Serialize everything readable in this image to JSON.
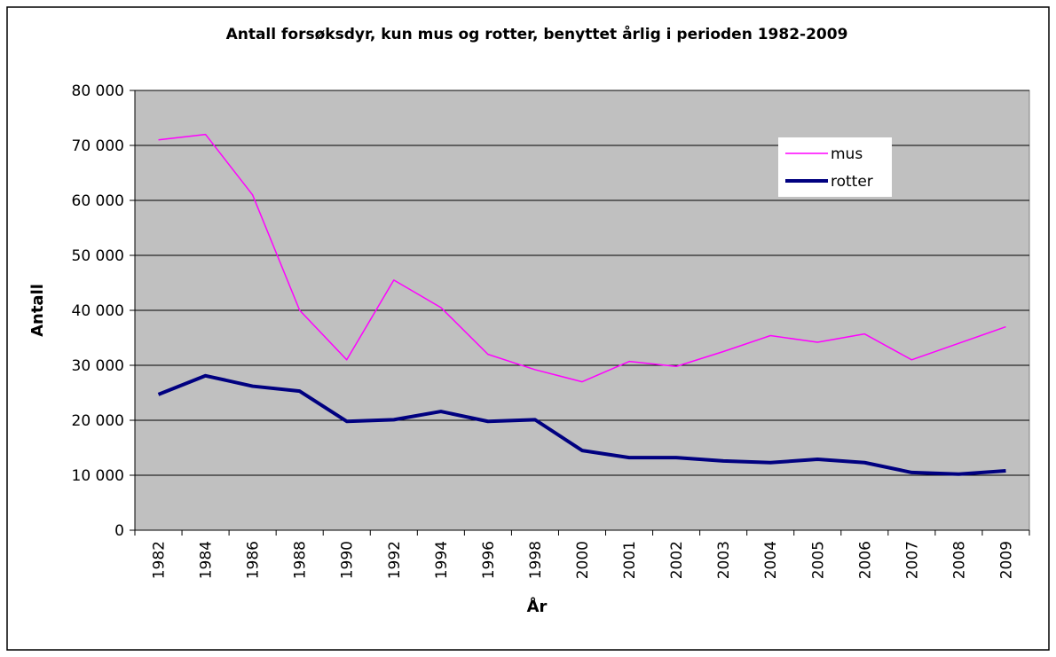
{
  "chart_data": {
    "type": "line",
    "title": "Antall forsøksdyr, kun mus og rotter, benyttet årlig i perioden 1982-2009",
    "x_label": "År",
    "y_label": "Antall",
    "categories": [
      "1982",
      "1984",
      "1986",
      "1988",
      "1990",
      "1992",
      "1994",
      "1996",
      "1998",
      "2000",
      "2001",
      "2002",
      "2003",
      "2004",
      "2005",
      "2006",
      "2007",
      "2008",
      "2009"
    ],
    "series": [
      {
        "name": "mus",
        "color": "#ff00ff",
        "width": 1.5,
        "values": [
          71000,
          72000,
          61000,
          40000,
          31000,
          45500,
          40500,
          32000,
          29200,
          27000,
          30700,
          29800,
          32500,
          35400,
          34200,
          35700,
          31000,
          34000,
          37000
        ]
      },
      {
        "name": "rotter",
        "color": "#000080",
        "width": 4,
        "values": [
          24700,
          28100,
          26200,
          25300,
          19800,
          20100,
          21600,
          19800,
          20100,
          14500,
          13200,
          13200,
          12600,
          12300,
          12900,
          12300,
          10500,
          10200,
          10800
        ]
      }
    ],
    "ylim": [
      0,
      80000
    ],
    "yticks": [
      {
        "value": 0,
        "label": "0"
      },
      {
        "value": 10000,
        "label": "10 000"
      },
      {
        "value": 20000,
        "label": "20 000"
      },
      {
        "value": 30000,
        "label": "30 000"
      },
      {
        "value": 40000,
        "label": "40 000"
      },
      {
        "value": 50000,
        "label": "50 000"
      },
      {
        "value": 60000,
        "label": "60 000"
      },
      {
        "value": 70000,
        "label": "70 000"
      },
      {
        "value": 80000,
        "label": "80 000"
      }
    ],
    "grid": true,
    "legend": "upper right",
    "plot_background": "#c0c0c0"
  }
}
